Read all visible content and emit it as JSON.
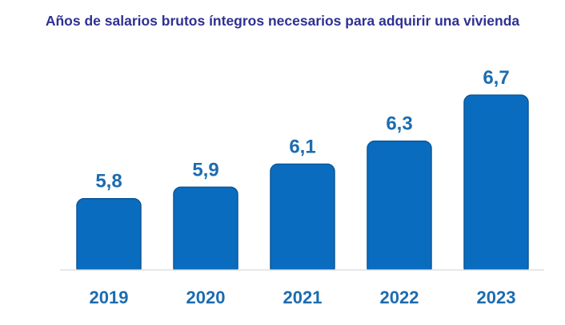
{
  "chart_data": {
    "type": "bar",
    "title": "Años de salarios brutos íntegros necesarios para adquirir una vivienda",
    "categories": [
      "2019",
      "2020",
      "2021",
      "2022",
      "2023"
    ],
    "values": [
      5.8,
      5.9,
      6.1,
      6.3,
      6.7
    ],
    "data_labels": [
      "5,8",
      "5,9",
      "6,1",
      "6,3",
      "6,7"
    ],
    "xlabel": "",
    "ylabel": "",
    "ylim": [
      5.18,
      6.8
    ],
    "grid": false,
    "legend": "none",
    "colors": {
      "bar": "#0a6cbf",
      "bar_border": "#0b5799",
      "label": "#1c6cb0",
      "title": "#2e3192",
      "axis": "#d9d9d9"
    }
  }
}
